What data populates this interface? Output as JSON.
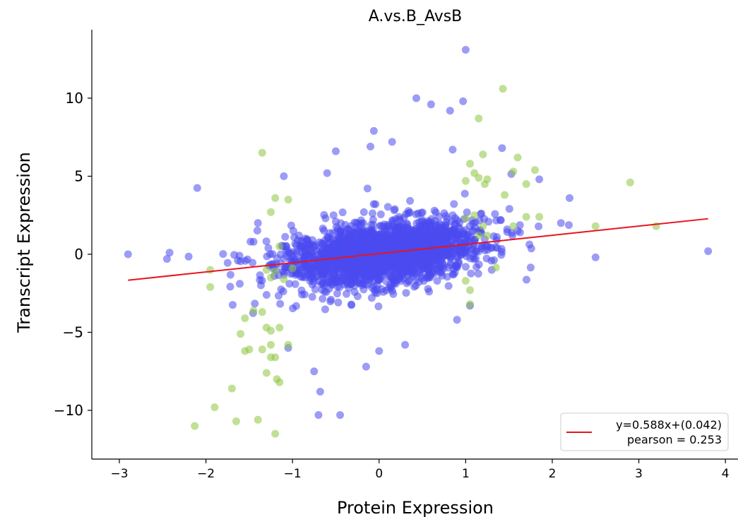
{
  "chart_data": {
    "type": "scatter",
    "title": "A.vs.B_AvsB",
    "xlabel": "Protein Expression",
    "ylabel": "Transcript Expression",
    "xlim": [
      -3.2,
      4.1
    ],
    "ylim": [
      -13,
      14.5
    ],
    "x_ticks": [
      -3,
      -2,
      -1,
      0,
      1,
      2,
      3,
      4
    ],
    "x_tick_labels": [
      "−3",
      "−2",
      "−1",
      "0",
      "1",
      "2",
      "3",
      "4"
    ],
    "y_ticks": [
      -10,
      -5,
      0,
      5,
      10
    ],
    "y_tick_labels": [
      "−10",
      "−5",
      "0",
      "5",
      "10"
    ],
    "grid": false,
    "legend_position": "lower-right",
    "legend": {
      "line1": "y=0.588x+(0.042)",
      "line2": "pearson = 0.253"
    },
    "colors": {
      "blue": "#4a4af0",
      "green": "#8cc63f",
      "fit": "#e8141e"
    },
    "fit_line": {
      "slope": 0.588,
      "intercept": 0.042,
      "x_range": [
        -2.9,
        3.8
      ]
    },
    "series": [
      {
        "color": "blue",
        "points": [
          [
            1.0,
            13.1
          ],
          [
            0.43,
            10.0
          ],
          [
            0.97,
            9.8
          ],
          [
            0.82,
            9.2
          ],
          [
            0.6,
            9.6
          ],
          [
            -0.06,
            7.9
          ],
          [
            1.42,
            6.8
          ],
          [
            -0.5,
            6.6
          ],
          [
            -0.1,
            6.9
          ],
          [
            0.15,
            7.2
          ],
          [
            0.85,
            6.7
          ],
          [
            -2.1,
            4.25
          ],
          [
            -1.1,
            5.0
          ],
          [
            2.2,
            3.6
          ],
          [
            1.85,
            4.8
          ],
          [
            3.8,
            0.2
          ],
          [
            2.5,
            -0.2
          ],
          [
            -2.9,
            0.0
          ],
          [
            -2.45,
            -0.3
          ],
          [
            -2.42,
            0.1
          ],
          [
            -2.2,
            -0.15
          ],
          [
            -1.75,
            -0.55
          ],
          [
            1.75,
            -0.85
          ],
          [
            -0.75,
            -7.5
          ],
          [
            -0.68,
            -8.8
          ],
          [
            -0.7,
            -10.3
          ],
          [
            -0.45,
            -10.3
          ],
          [
            -0.15,
            -7.2
          ],
          [
            0.0,
            -6.2
          ],
          [
            -1.05,
            -6.0
          ],
          [
            1.4,
            2.2
          ],
          [
            1.6,
            1.5
          ],
          [
            2.1,
            2.0
          ],
          [
            1.3,
            -1.0
          ],
          [
            0.9,
            -4.2
          ],
          [
            1.05,
            -3.3
          ],
          [
            -1.3,
            -2.6
          ],
          [
            -1.4,
            2.0
          ],
          [
            0.3,
            -5.8
          ],
          [
            -0.6,
            5.2
          ]
        ],
        "cluster": {
          "count": 2400,
          "x_mean": 0.05,
          "x_sd": 0.5,
          "y_sd": 1.1,
          "slope": 0.75,
          "seed": 12345
        }
      },
      {
        "color": "green",
        "points": [
          [
            1.43,
            10.6
          ],
          [
            1.15,
            8.7
          ],
          [
            -1.35,
            6.5
          ],
          [
            1.2,
            6.4
          ],
          [
            1.05,
            5.8
          ],
          [
            1.1,
            5.2
          ],
          [
            1.15,
            4.9
          ],
          [
            1.25,
            4.8
          ],
          [
            1.22,
            4.5
          ],
          [
            1.0,
            4.7
          ],
          [
            1.6,
            6.2
          ],
          [
            1.55,
            5.3
          ],
          [
            1.8,
            5.4
          ],
          [
            1.7,
            4.5
          ],
          [
            1.45,
            3.8
          ],
          [
            2.9,
            4.6
          ],
          [
            2.5,
            1.8
          ],
          [
            3.2,
            1.8
          ],
          [
            1.7,
            2.4
          ],
          [
            1.85,
            2.4
          ],
          [
            1.55,
            1.8
          ],
          [
            1.1,
            2.5
          ],
          [
            1.0,
            2.3
          ],
          [
            1.2,
            1.8
          ],
          [
            1.15,
            1.2
          ],
          [
            1.25,
            1.2
          ],
          [
            -1.2,
            3.6
          ],
          [
            -1.05,
            3.5
          ],
          [
            -1.25,
            2.7
          ],
          [
            -1.15,
            0.5
          ],
          [
            -1.95,
            -1.0
          ],
          [
            -1.95,
            -2.1
          ],
          [
            -1.3,
            -1.0
          ],
          [
            -1.2,
            -1.1
          ],
          [
            -1.1,
            -1.6
          ],
          [
            -1.25,
            -1.5
          ],
          [
            -1.0,
            -0.9
          ],
          [
            1.0,
            -1.7
          ],
          [
            1.05,
            -2.3
          ],
          [
            1.05,
            -3.2
          ],
          [
            1.35,
            -0.85
          ],
          [
            -1.45,
            -3.6
          ],
          [
            -1.35,
            -3.7
          ],
          [
            -1.55,
            -4.1
          ],
          [
            -1.6,
            -5.1
          ],
          [
            -1.3,
            -4.7
          ],
          [
            -1.25,
            -4.9
          ],
          [
            -1.15,
            -4.7
          ],
          [
            -1.5,
            -6.1
          ],
          [
            -1.55,
            -6.2
          ],
          [
            -1.25,
            -6.6
          ],
          [
            -1.2,
            -6.6
          ],
          [
            -1.05,
            -5.8
          ],
          [
            -1.25,
            -5.8
          ],
          [
            -1.35,
            -6.1
          ],
          [
            -1.3,
            -7.6
          ],
          [
            -1.15,
            -8.2
          ],
          [
            -1.18,
            -8.0
          ],
          [
            -1.7,
            -8.6
          ],
          [
            -1.9,
            -9.8
          ],
          [
            -2.13,
            -11.0
          ],
          [
            -1.65,
            -10.7
          ],
          [
            -1.4,
            -10.6
          ],
          [
            -1.2,
            -11.5
          ]
        ]
      }
    ]
  }
}
